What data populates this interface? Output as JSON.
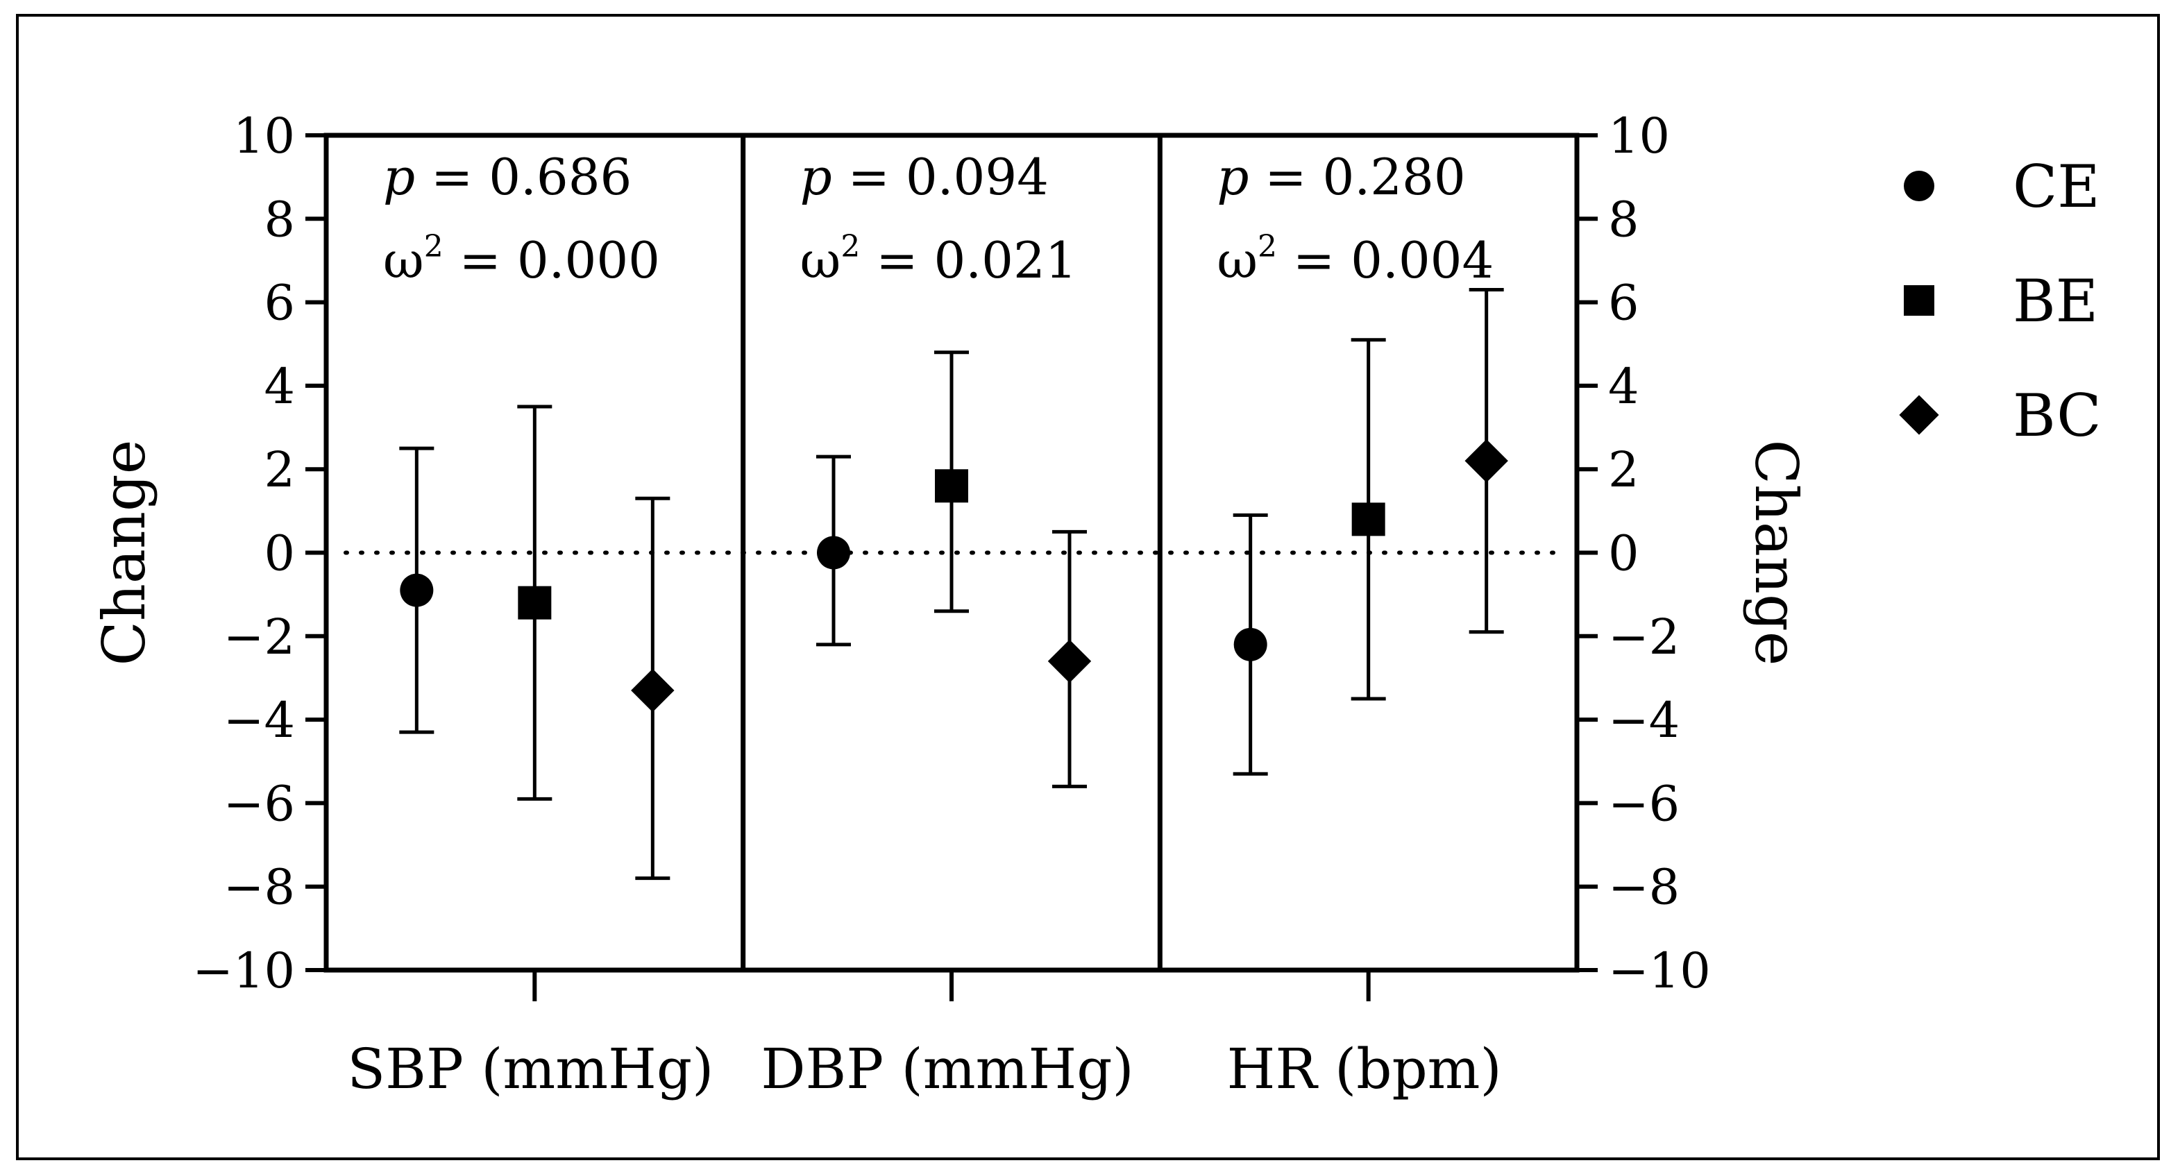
{
  "chart_data": {
    "type": "scatter",
    "subtype": "mean-with-error-bars",
    "ylabel": "Change",
    "ylabel_right": "Change",
    "ylim": [
      -10,
      10
    ],
    "yticks": [
      10,
      8,
      6,
      4,
      2,
      0,
      -2,
      -4,
      -6,
      -8,
      -10
    ],
    "ytick_labels": [
      "10",
      "8",
      "6",
      "4",
      "2",
      "0",
      "−2",
      "−4",
      "−6",
      "−8",
      "−10"
    ],
    "reference_line": {
      "y": 0,
      "style": "dotted"
    },
    "groups": [
      {
        "label": "SBP (mmHg)",
        "p_prefix": "p",
        "p_text": " = 0.686",
        "omega_prefix": "ω",
        "omega_exp": "2",
        "omega_text": " = 0.000",
        "points": [
          {
            "series": "CE",
            "mean": -0.9,
            "lower": -4.3,
            "upper": 2.5
          },
          {
            "series": "BE",
            "mean": -1.2,
            "lower": -5.9,
            "upper": 3.5
          },
          {
            "series": "BC",
            "mean": -3.3,
            "lower": -7.8,
            "upper": 1.3
          }
        ]
      },
      {
        "label": "DBP (mmHg)",
        "p_prefix": "p",
        "p_text": " = 0.094",
        "omega_prefix": "ω",
        "omega_exp": "2",
        "omega_text": " = 0.021",
        "points": [
          {
            "series": "CE",
            "mean": 0.0,
            "lower": -2.2,
            "upper": 2.3
          },
          {
            "series": "BE",
            "mean": 1.6,
            "lower": -1.4,
            "upper": 4.8
          },
          {
            "series": "BC",
            "mean": -2.6,
            "lower": -5.6,
            "upper": 0.5
          }
        ]
      },
      {
        "label": "HR (bpm)",
        "p_prefix": "p",
        "p_text": " = 0.280",
        "omega_prefix": "ω",
        "omega_exp": "2",
        "omega_text": " = 0.004",
        "points": [
          {
            "series": "CE",
            "mean": -2.2,
            "lower": -5.3,
            "upper": 0.9
          },
          {
            "series": "BE",
            "mean": 0.8,
            "lower": -3.5,
            "upper": 5.1
          },
          {
            "series": "BC",
            "mean": 2.2,
            "lower": -1.9,
            "upper": 6.3
          }
        ]
      }
    ],
    "legend": [
      {
        "label": "CE",
        "marker": "circle"
      },
      {
        "label": "BE",
        "marker": "square"
      },
      {
        "label": "BC",
        "marker": "diamond"
      }
    ],
    "legend_position": "top-right",
    "colors": {
      "ink": "#000000",
      "background": "#ffffff"
    }
  }
}
